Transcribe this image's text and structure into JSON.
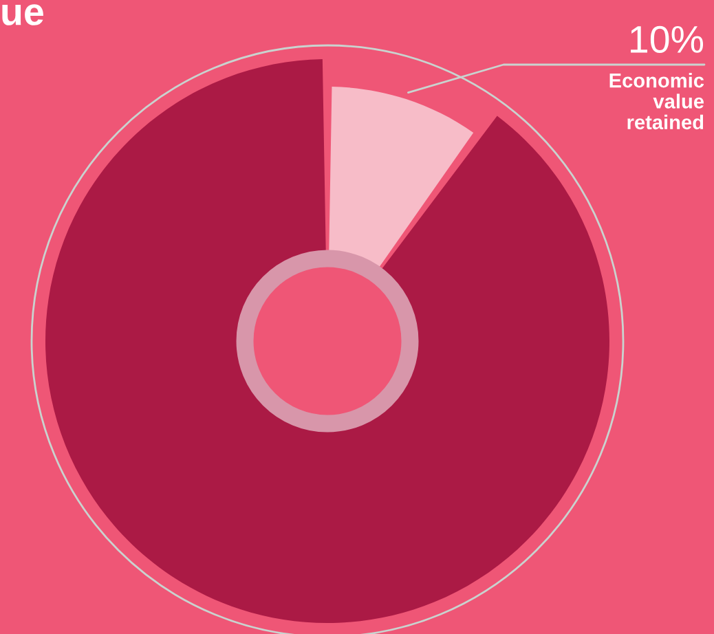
{
  "chart_data": {
    "type": "donut",
    "title": "ue",
    "categories": [
      "Economic value retained",
      null
    ],
    "values": [
      10,
      90
    ],
    "colors": [
      "#f7bcc8",
      "#ab1a45"
    ],
    "value_labels": [
      "10%",
      null
    ]
  }
}
